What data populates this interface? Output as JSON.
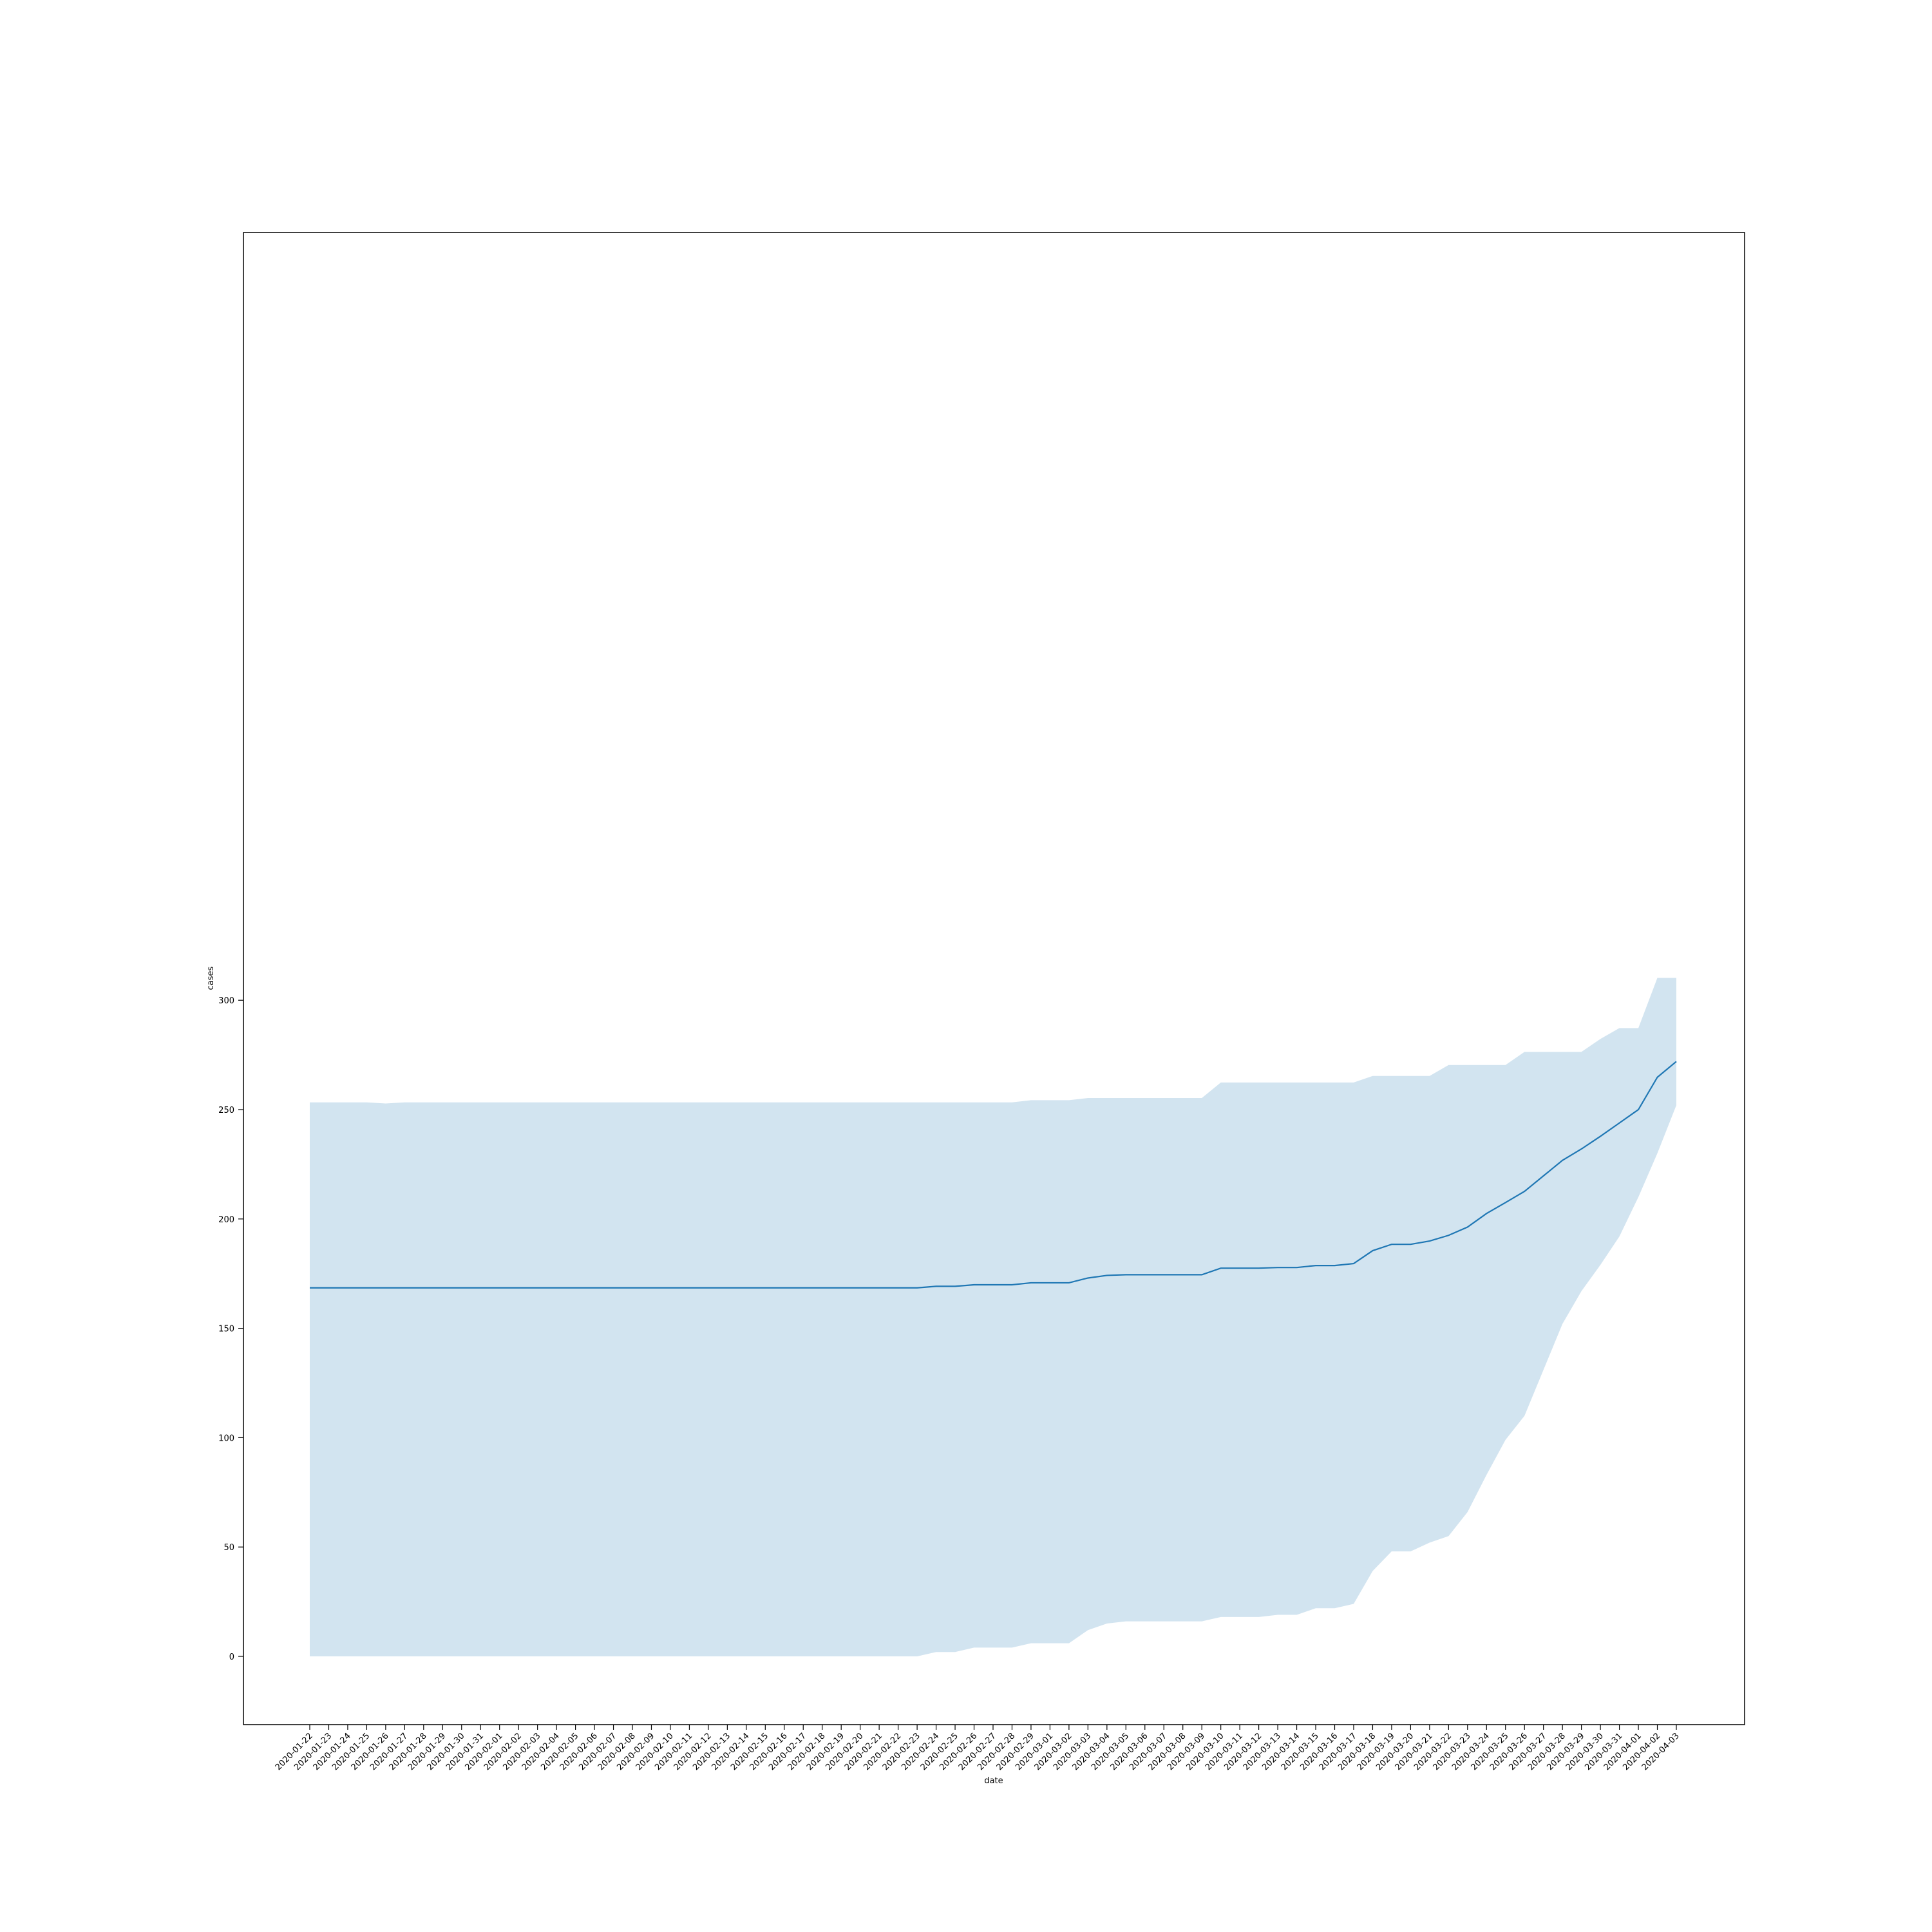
{
  "chart_data": {
    "type": "area",
    "xlabel": "date",
    "ylabel": "cases",
    "ylim": [
      -15,
      325
    ],
    "yticks": [
      0,
      50,
      100,
      150,
      200,
      250,
      300
    ],
    "grid": false,
    "line_color": "#1f77b4",
    "band_color": "#1f77b4",
    "band_opacity": 0.2,
    "x": [
      "2020-01-22",
      "2020-01-23",
      "2020-01-24",
      "2020-01-25",
      "2020-01-26",
      "2020-01-27",
      "2020-01-28",
      "2020-01-29",
      "2020-01-30",
      "2020-01-31",
      "2020-02-01",
      "2020-02-02",
      "2020-02-03",
      "2020-02-04",
      "2020-02-05",
      "2020-02-06",
      "2020-02-07",
      "2020-02-08",
      "2020-02-09",
      "2020-02-10",
      "2020-02-11",
      "2020-02-12",
      "2020-02-13",
      "2020-02-14",
      "2020-02-15",
      "2020-02-16",
      "2020-02-17",
      "2020-02-18",
      "2020-02-19",
      "2020-02-20",
      "2020-02-21",
      "2020-02-22",
      "2020-02-23",
      "2020-02-24",
      "2020-02-25",
      "2020-02-26",
      "2020-02-27",
      "2020-02-28",
      "2020-02-29",
      "2020-03-01",
      "2020-03-02",
      "2020-03-03",
      "2020-03-04",
      "2020-03-05",
      "2020-03-06",
      "2020-03-07",
      "2020-03-08",
      "2020-03-09",
      "2020-03-10",
      "2020-03-11",
      "2020-03-12",
      "2020-03-13",
      "2020-03-14",
      "2020-03-15",
      "2020-03-16",
      "2020-03-17",
      "2020-03-18",
      "2020-03-19",
      "2020-03-20",
      "2020-03-21",
      "2020-03-22",
      "2020-03-23",
      "2020-03-24",
      "2020-03-25",
      "2020-03-26",
      "2020-03-27",
      "2020-03-28",
      "2020-03-29",
      "2020-03-30",
      "2020-03-31",
      "2020-04-01",
      "2020-04-02",
      "2020-04-03"
    ],
    "series": [
      {
        "values": [
          168.5,
          168.5,
          168.5,
          168.5,
          168.5,
          168.5,
          168.5,
          168.5,
          168.5,
          168.5,
          168.5,
          168.5,
          168.5,
          168.5,
          168.5,
          168.5,
          168.5,
          168.5,
          168.5,
          168.5,
          168.5,
          168.5,
          168.5,
          168.5,
          168.5,
          168.5,
          168.5,
          168.5,
          168.5,
          168.5,
          168.5,
          168.5,
          168.5,
          169.2,
          169.2,
          169.9,
          169.9,
          169.9,
          170.8,
          170.8,
          170.8,
          173.0,
          174.2,
          174.5,
          174.5,
          174.5,
          174.5,
          174.5,
          177.5,
          177.5,
          177.5,
          177.8,
          177.8,
          178.7,
          178.7,
          179.6,
          185.5,
          188.4,
          188.4,
          189.9,
          192.5,
          196.3,
          202.5,
          207.5,
          212.6,
          219.7,
          226.8,
          232.0,
          237.8,
          243.9,
          250.0,
          264.8,
          272.0
        ],
        "lower": [
          0,
          0,
          0,
          0,
          0,
          0,
          0,
          0,
          0,
          0,
          0,
          0,
          0,
          0,
          0,
          0,
          0,
          0,
          0,
          0,
          0,
          0,
          0,
          0,
          0,
          0,
          0,
          0,
          0,
          0,
          0,
          0,
          0,
          2,
          2,
          4,
          4,
          4,
          6,
          6,
          6,
          12,
          15,
          16,
          16,
          16,
          16,
          16,
          18,
          18,
          18,
          19,
          19,
          22,
          22,
          24,
          39,
          48,
          48,
          52,
          55,
          66,
          83,
          99,
          110,
          131,
          152,
          167,
          179,
          192,
          210,
          230,
          252
        ],
        "upper": [
          253.3,
          253.3,
          253.3,
          253.3,
          252.8,
          253.3,
          253.3,
          253.3,
          253.3,
          253.3,
          253.3,
          253.3,
          253.3,
          253.3,
          253.3,
          253.3,
          253.3,
          253.3,
          253.3,
          253.3,
          253.3,
          253.3,
          253.3,
          253.3,
          253.3,
          253.3,
          253.3,
          253.3,
          253.3,
          253.3,
          253.3,
          253.3,
          253.3,
          253.3,
          253.3,
          253.3,
          253.3,
          253.3,
          254.3,
          254.3,
          254.3,
          255.3,
          255.3,
          255.3,
          255.3,
          255.3,
          255.3,
          255.3,
          262.4,
          262.4,
          262.4,
          262.4,
          262.4,
          262.4,
          262.4,
          262.4,
          265.4,
          265.4,
          265.4,
          265.4,
          270.4,
          270.4,
          270.4,
          270.4,
          276.4,
          276.4,
          276.4,
          276.4,
          282.3,
          287.3,
          287.3,
          310.2,
          310.2
        ]
      }
    ]
  }
}
